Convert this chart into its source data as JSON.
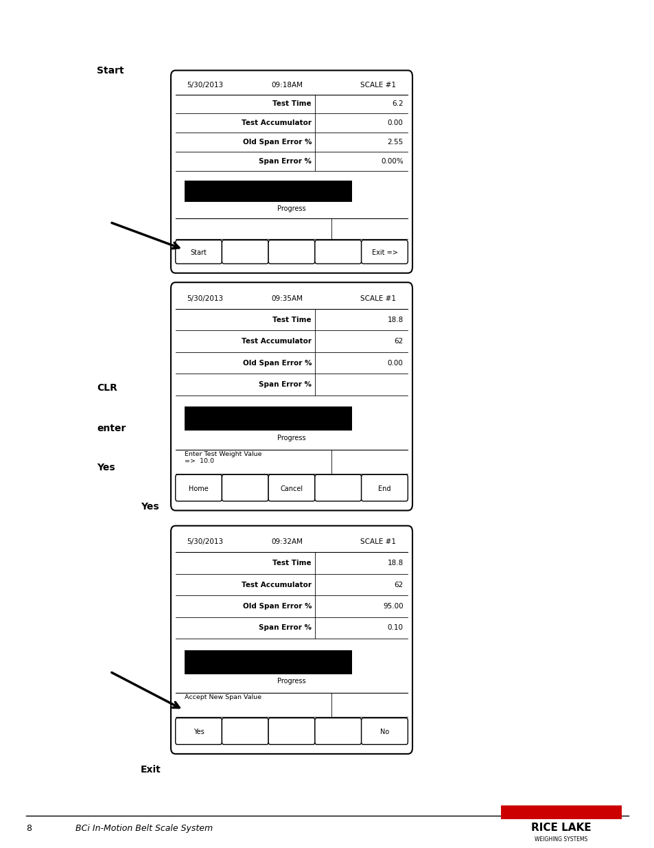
{
  "bg_color": "#ffffff",
  "screen1": {
    "date": "5/30/2013",
    "time": "09:18AM",
    "scale": "SCALE #1",
    "rows": [
      {
        "label": "Test Time",
        "value": "6.2"
      },
      {
        "label": "Test Accumulator",
        "value": "0.00"
      },
      {
        "label": "Old Span Error %",
        "value": "2.55"
      },
      {
        "label": "Span Error %",
        "value": "0.00%"
      }
    ],
    "progress_text": "Progress",
    "softkeys": [
      "Start",
      "",
      "",
      "",
      "Exit =>"
    ],
    "has_bottom_text": false,
    "bottom_text": ""
  },
  "screen2": {
    "date": "5/30/2013",
    "time": "09:35AM",
    "scale": "SCALE #1",
    "rows": [
      {
        "label": "Test Time",
        "value": "18.8"
      },
      {
        "label": "Test Accumulator",
        "value": "62"
      },
      {
        "label": "Old Span Error %",
        "value": "0.00"
      },
      {
        "label": "Span Error %",
        "value": ""
      }
    ],
    "progress_text": "Progress",
    "has_bottom_text": true,
    "bottom_text": "Enter Test Weight Value\n=>  10.0",
    "softkeys": [
      "Home",
      "",
      "Cancel",
      "",
      "End"
    ]
  },
  "screen3": {
    "date": "5/30/2013",
    "time": "09:32AM",
    "scale": "SCALE #1",
    "rows": [
      {
        "label": "Test Time",
        "value": "18.8"
      },
      {
        "label": "Test Accumulator",
        "value": "62"
      },
      {
        "label": "Old Span Error %",
        "value": "95.00"
      },
      {
        "label": "Span Error %",
        "value": "0.10"
      }
    ],
    "progress_text": "Progress",
    "has_bottom_text": true,
    "bottom_text": "Accept New Span Value",
    "softkeys": [
      "Yes",
      "",
      "",
      "",
      "No"
    ]
  },
  "footer_text": "8",
  "footer_italic": "BCi In-Motion Belt Scale System"
}
